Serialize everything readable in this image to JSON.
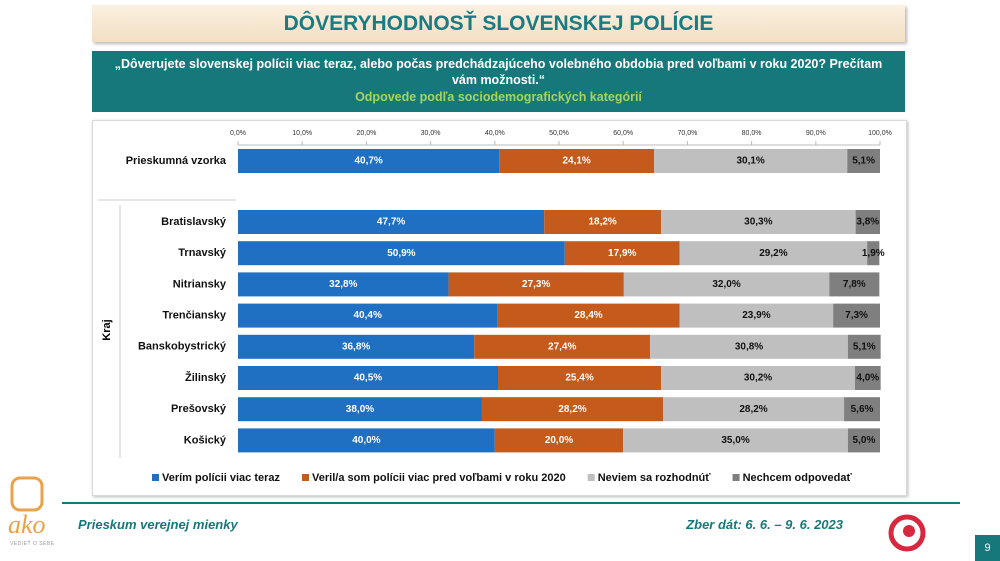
{
  "header": {
    "title": "DÔVERYHODNOSŤ SLOVENSKEJ POLÍCIE",
    "question": "„Dôverujete slovenskej polícii viac teraz, alebo počas predchádzajúceho volebného obdobia pred voľbami v roku 2020? Prečítam vám možnosti.“",
    "subtitle": "Odpovede podľa sociodemografických kategórií"
  },
  "chart_data": {
    "type": "bar",
    "orientation": "horizontal",
    "stacked": true,
    "group_label": "Kraj",
    "categories": [
      "Prieskumná vzorka",
      "Bratislavský",
      "Trnavský",
      "Nitriansky",
      "Trenčiansky",
      "Banskobystrický",
      "Žilinský",
      "Prešovský",
      "Košický"
    ],
    "xlim": [
      0,
      100
    ],
    "xticks": [
      {
        "value": 0,
        "label": "0,0%"
      },
      {
        "value": 10,
        "label": "10,0%"
      },
      {
        "value": 20,
        "label": "20,0%"
      },
      {
        "value": 30,
        "label": "30,0%"
      },
      {
        "value": 40,
        "label": "40,0%"
      },
      {
        "value": 50,
        "label": "50,0%"
      },
      {
        "value": 60,
        "label": "60,0%"
      },
      {
        "value": 70,
        "label": "70,0%"
      },
      {
        "value": 80,
        "label": "80,0%"
      },
      {
        "value": 90,
        "label": "90,0%"
      },
      {
        "value": 100,
        "label": "100,0%"
      }
    ],
    "legend": "bottom",
    "series": [
      {
        "name": "Verím polícii viac teraz",
        "color": "#1f6fc3",
        "values": [
          40.7,
          47.7,
          50.9,
          32.8,
          40.4,
          36.8,
          40.5,
          38.0,
          40.0
        ],
        "value_labels": [
          "40,7%",
          "47,7%",
          "50,9%",
          "32,8%",
          "40,4%",
          "36,8%",
          "40,5%",
          "38,0%",
          "40,0%"
        ]
      },
      {
        "name": "Veril/a som polícii viac pred voľbami v roku 2020",
        "color": "#c55a1d",
        "values": [
          24.1,
          18.2,
          17.9,
          27.3,
          28.4,
          27.4,
          25.4,
          28.2,
          20.0
        ],
        "value_labels": [
          "24,1%",
          "18,2%",
          "17,9%",
          "27,3%",
          "28,4%",
          "27,4%",
          "25,4%",
          "28,2%",
          "20,0%"
        ]
      },
      {
        "name": "Neviem sa rozhodnúť",
        "color": "#bfbfbf",
        "values": [
          30.1,
          30.3,
          29.2,
          32.0,
          23.9,
          30.8,
          30.2,
          28.2,
          35.0
        ],
        "value_labels": [
          "30,1%",
          "30,3%",
          "29,2%",
          "32,0%",
          "23,9%",
          "30,8%",
          "30,2%",
          "28,2%",
          "35,0%"
        ]
      },
      {
        "name": "Nechcem odpovedať",
        "color": "#7f7f7f",
        "values": [
          5.1,
          3.8,
          1.9,
          7.8,
          7.3,
          5.1,
          4.0,
          5.6,
          5.0
        ],
        "value_labels": [
          "5,1%",
          "3,8%",
          "1,9%",
          "7,8%",
          "7,3%",
          "5,1%",
          "4,0%",
          "5,6%",
          "5,0%"
        ]
      }
    ]
  },
  "footer": {
    "left": "Prieskum verejnej mienky",
    "right": "Zber dát: 6. 6. – 9. 6. 2023",
    "page": "9",
    "logo": "ako",
    "logo_tagline": "VEDIEŤ O SEBE"
  }
}
